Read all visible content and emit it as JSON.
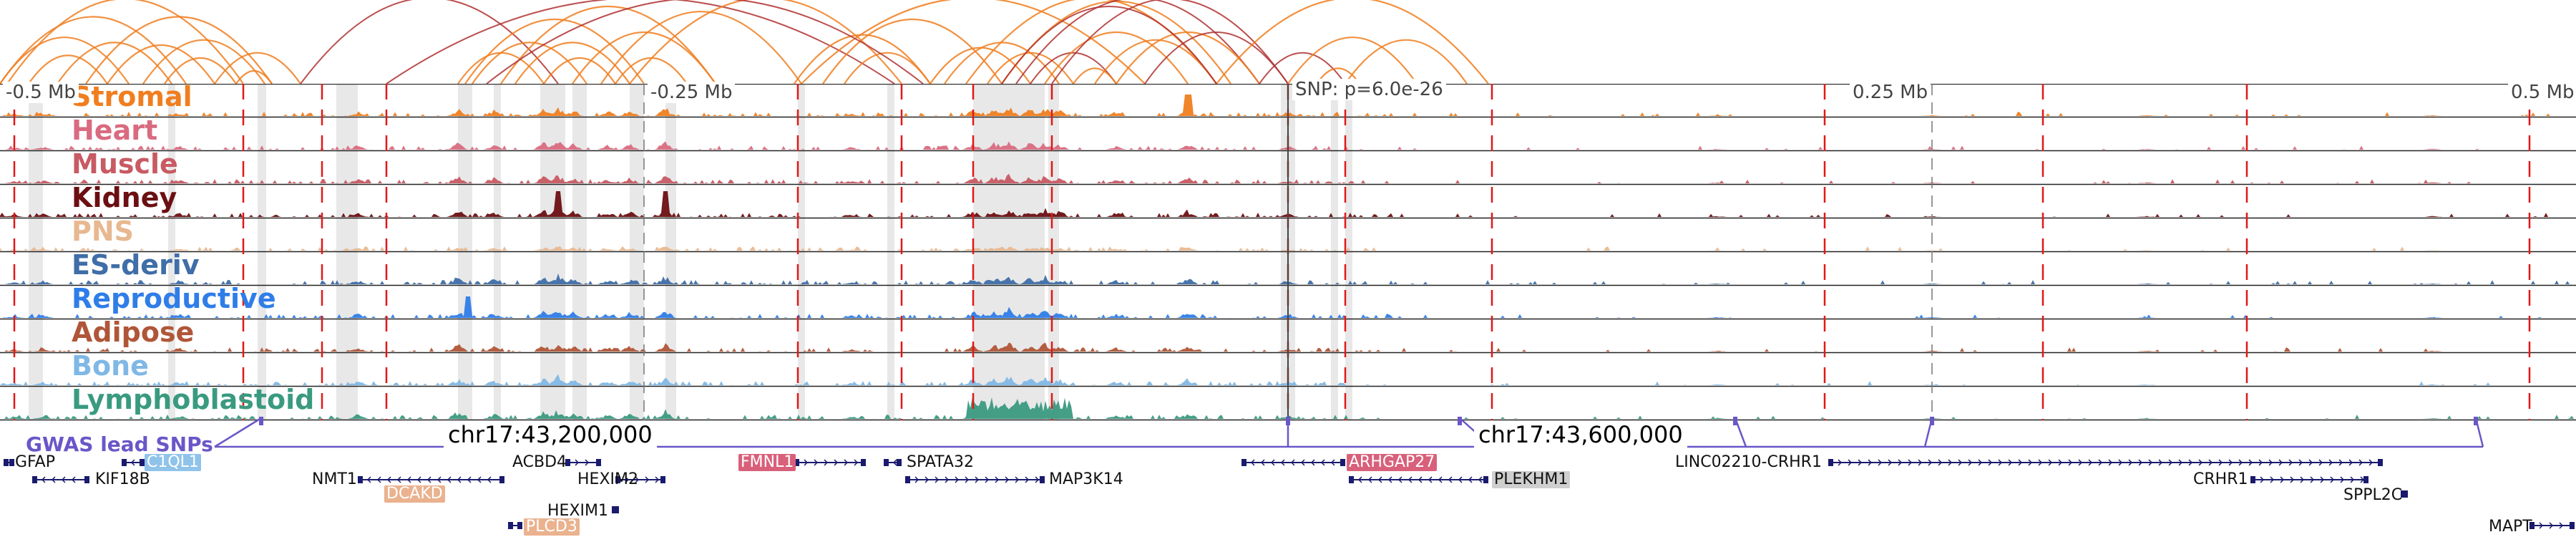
{
  "axis": {
    "left_label": "-0.5 Mb",
    "mid_left_label": "-0.25 Mb",
    "snp_label": "SNP: p=6.0e-26",
    "mid_right_label": "0.25 Mb",
    "right_label": "0.5 Mb"
  },
  "tracks": [
    {
      "name": "Stromal",
      "color": "#f07e1f"
    },
    {
      "name": "Heart",
      "color": "#d96b80"
    },
    {
      "name": "Muscle",
      "color": "#c85a63"
    },
    {
      "name": "Kidney",
      "color": "#6b0f12"
    },
    {
      "name": "PNS",
      "color": "#e8b890"
    },
    {
      "name": "ES-deriv",
      "color": "#3f6ea8"
    },
    {
      "name": "Reproductive",
      "color": "#2f7de8"
    },
    {
      "name": "Adipose",
      "color": "#b05638"
    },
    {
      "name": "Bone",
      "color": "#7fb8e6"
    },
    {
      "name": "Lymphoblastoid",
      "color": "#3a9a80"
    }
  ],
  "gwas": {
    "label": "GWAS lead SNPs",
    "coord_left": "chr17:43,200,000",
    "coord_right": "chr17:43,600,000",
    "color": "#6b56c8"
  },
  "genes": {
    "gfap": "GFAP",
    "c1ql1": "C1QL1",
    "kif18b": "KIF18B",
    "nmt1": "NMT1",
    "dcakd": "DCAKD",
    "acbd4": "ACBD4",
    "hexim2": "HEXIM2",
    "hexim1": "HEXIM1",
    "plcd3": "PLCD3",
    "fmnl1": "FMNL1",
    "spata32": "SPATA32",
    "map3k14": "MAP3K14",
    "arhgap27": "ARHGAP27",
    "plekhm1": "PLEKHM1",
    "linc": "LINC02210-CRHR1",
    "crhr1": "CRHR1",
    "sppl2c": "SPPL2C",
    "mapt": "MAPT"
  },
  "colors": {
    "arc_orange": "#f07e1f",
    "arc_red": "#b03030",
    "highlight_gray": "#d4d4d4",
    "red_dash": "#e01818",
    "gene_dark": "#1a1a6e",
    "gwas_purple": "#6b56c8"
  }
}
